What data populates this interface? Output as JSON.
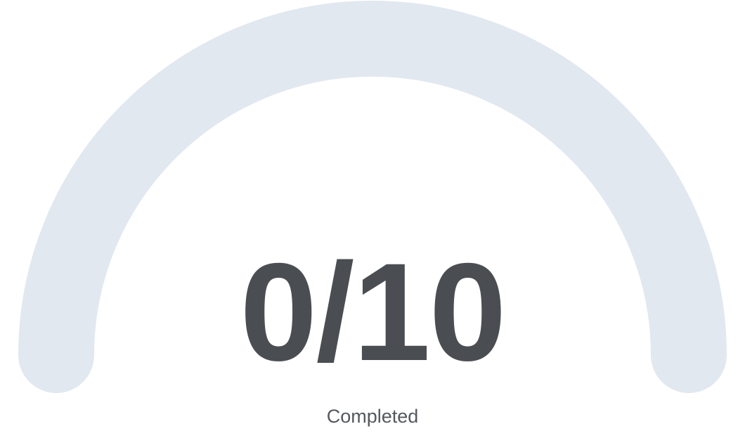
{
  "gauge": {
    "completed": 0,
    "total": 10,
    "progress_fraction": 0,
    "track_color": "#e2e8f0",
    "fill_color": "#4a4e52",
    "score_text": "0/10",
    "caption": "Completed"
  }
}
